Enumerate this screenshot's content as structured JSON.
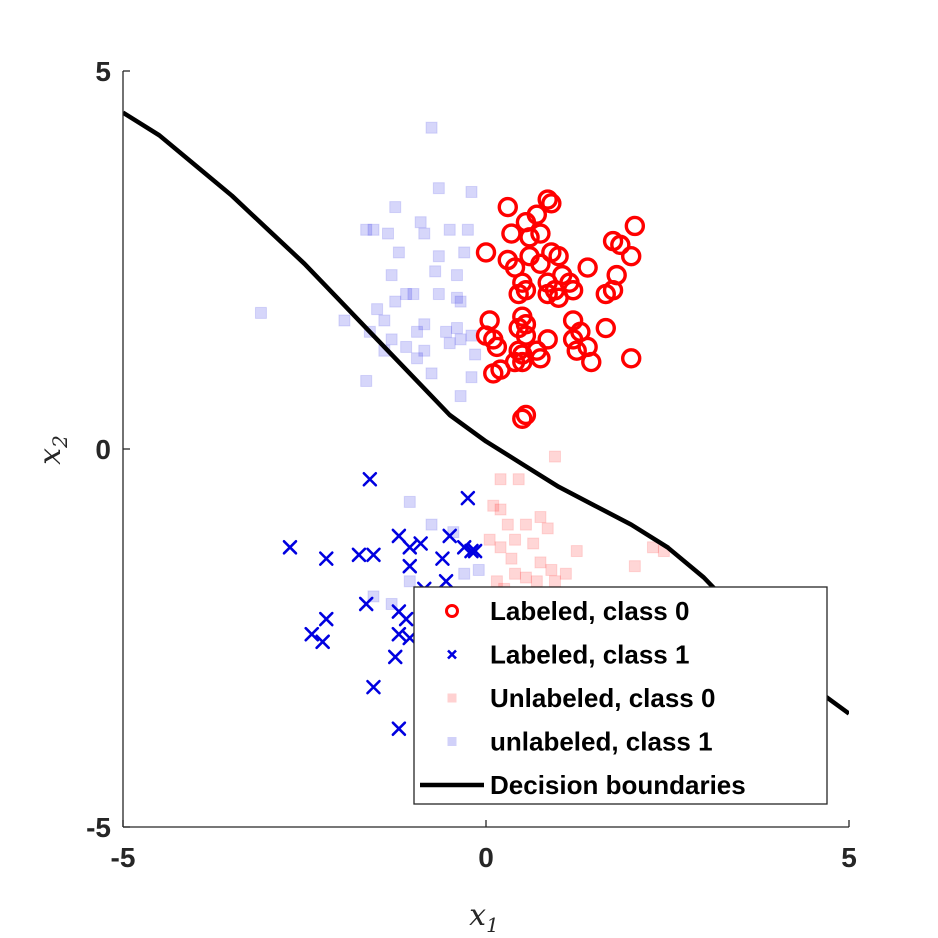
{
  "chart_data": {
    "type": "scatter",
    "title": "",
    "xlabel": "x",
    "xlabel_sub": "1",
    "ylabel": "x",
    "ylabel_sub": "2",
    "xlim": [
      -5,
      5
    ],
    "ylim": [
      -5,
      5
    ],
    "xticks": [
      -5,
      0,
      5
    ],
    "yticks": [
      -5,
      0,
      5
    ],
    "xtick_labels": [
      "-5",
      "0",
      "5"
    ],
    "ytick_labels": [
      "-5",
      "0",
      "5"
    ],
    "grid": false,
    "legend_position": "bottom-right",
    "colors": {
      "class0": "#ff0000",
      "class1": "#0000e0",
      "boundary": "#000000"
    },
    "series": [
      {
        "name": "Labeled, class 0",
        "marker": "circle",
        "points": [
          [
            0.3,
            3.2
          ],
          [
            0.55,
            3.0
          ],
          [
            0.85,
            3.3
          ],
          [
            0.9,
            3.25
          ],
          [
            0.7,
            3.1
          ],
          [
            2.05,
            2.95
          ],
          [
            0.35,
            2.85
          ],
          [
            0.6,
            2.8
          ],
          [
            0.75,
            2.85
          ],
          [
            1.75,
            2.75
          ],
          [
            1.85,
            2.7
          ],
          [
            0.0,
            2.6
          ],
          [
            0.3,
            2.5
          ],
          [
            0.6,
            2.55
          ],
          [
            0.9,
            2.6
          ],
          [
            1.0,
            2.55
          ],
          [
            2.0,
            2.55
          ],
          [
            0.4,
            2.4
          ],
          [
            0.75,
            2.45
          ],
          [
            1.05,
            2.3
          ],
          [
            1.4,
            2.4
          ],
          [
            0.5,
            2.2
          ],
          [
            0.85,
            2.2
          ],
          [
            0.95,
            2.1
          ],
          [
            1.15,
            2.2
          ],
          [
            1.8,
            2.3
          ],
          [
            1.2,
            2.1
          ],
          [
            0.45,
            2.05
          ],
          [
            0.55,
            2.1
          ],
          [
            1.65,
            2.05
          ],
          [
            1.75,
            2.1
          ],
          [
            0.85,
            2.05
          ],
          [
            1.0,
            2.0
          ],
          [
            0.05,
            1.7
          ],
          [
            0.5,
            1.75
          ],
          [
            0.55,
            1.65
          ],
          [
            1.2,
            1.7
          ],
          [
            1.65,
            1.6
          ],
          [
            0.45,
            1.6
          ],
          [
            0.0,
            1.5
          ],
          [
            0.1,
            1.45
          ],
          [
            0.55,
            1.5
          ],
          [
            0.85,
            1.45
          ],
          [
            1.3,
            1.55
          ],
          [
            1.2,
            1.45
          ],
          [
            0.15,
            1.35
          ],
          [
            0.45,
            1.3
          ],
          [
            0.7,
            1.3
          ],
          [
            1.25,
            1.3
          ],
          [
            1.4,
            1.35
          ],
          [
            0.4,
            1.15
          ],
          [
            0.5,
            1.25
          ],
          [
            0.75,
            1.2
          ],
          [
            1.45,
            1.15
          ],
          [
            2.0,
            1.2
          ],
          [
            0.1,
            1.0
          ],
          [
            0.5,
            1.15
          ],
          [
            0.5,
            0.4
          ],
          [
            0.55,
            0.45
          ],
          [
            0.2,
            1.05
          ]
        ]
      },
      {
        "name": "Labeled, class 1",
        "marker": "x",
        "points": [
          [
            -1.6,
            -0.4
          ],
          [
            -0.25,
            -0.65
          ],
          [
            -1.2,
            -1.15
          ],
          [
            -1.05,
            -1.3
          ],
          [
            -0.5,
            -1.15
          ],
          [
            -0.3,
            -1.3
          ],
          [
            -0.2,
            -1.35
          ],
          [
            -0.15,
            -1.35
          ],
          [
            -2.7,
            -1.3
          ],
          [
            -2.2,
            -1.45
          ],
          [
            -1.75,
            -1.4
          ],
          [
            -1.55,
            -1.4
          ],
          [
            -0.9,
            -1.25
          ],
          [
            -0.6,
            -1.45
          ],
          [
            -1.05,
            -1.55
          ],
          [
            -0.85,
            -1.85
          ],
          [
            -0.55,
            -1.75
          ],
          [
            -1.65,
            -2.05
          ],
          [
            -1.2,
            -2.15
          ],
          [
            -1.1,
            -2.25
          ],
          [
            -2.2,
            -2.25
          ],
          [
            -2.4,
            -2.45
          ],
          [
            -2.25,
            -2.55
          ],
          [
            -1.2,
            -2.45
          ],
          [
            -1.05,
            -2.5
          ],
          [
            -1.25,
            -2.75
          ],
          [
            -1.55,
            -3.15
          ],
          [
            -1.2,
            -3.7
          ]
        ]
      },
      {
        "name": "Unlabeled, class 0",
        "marker": "square",
        "points": [
          [
            0.2,
            -0.4
          ],
          [
            0.45,
            -0.4
          ],
          [
            0.95,
            -0.1
          ],
          [
            0.2,
            -0.8
          ],
          [
            0.1,
            -0.75
          ],
          [
            0.75,
            -0.9
          ],
          [
            0.55,
            -1.0
          ],
          [
            0.85,
            -1.05
          ],
          [
            0.3,
            -1.0
          ],
          [
            0.4,
            -1.2
          ],
          [
            0.65,
            -1.25
          ],
          [
            0.05,
            -1.2
          ],
          [
            0.2,
            -1.3
          ],
          [
            0.35,
            -1.45
          ],
          [
            0.75,
            -1.5
          ],
          [
            1.25,
            -1.35
          ],
          [
            2.45,
            -1.35
          ],
          [
            0.4,
            -1.65
          ],
          [
            0.55,
            -1.7
          ],
          [
            0.9,
            -1.6
          ],
          [
            1.1,
            -1.65
          ],
          [
            2.05,
            -1.55
          ],
          [
            0.25,
            -1.85
          ],
          [
            0.7,
            -1.75
          ],
          [
            0.95,
            -1.75
          ],
          [
            2.3,
            -1.3
          ],
          [
            0.15,
            -1.75
          ]
        ]
      },
      {
        "name": "unlabeled, class 1",
        "marker": "square",
        "points": [
          [
            -0.75,
            4.25
          ],
          [
            -0.65,
            3.45
          ],
          [
            -0.2,
            3.4
          ],
          [
            -1.25,
            3.2
          ],
          [
            -0.9,
            3.0
          ],
          [
            -1.65,
            2.9
          ],
          [
            -1.55,
            2.9
          ],
          [
            -1.35,
            2.85
          ],
          [
            -0.85,
            2.85
          ],
          [
            -0.5,
            2.9
          ],
          [
            -0.25,
            2.9
          ],
          [
            -1.2,
            2.6
          ],
          [
            -0.65,
            2.55
          ],
          [
            -0.3,
            2.6
          ],
          [
            -1.3,
            2.3
          ],
          [
            -0.7,
            2.35
          ],
          [
            -0.4,
            2.3
          ],
          [
            -1.0,
            2.05
          ],
          [
            -0.65,
            2.05
          ],
          [
            -0.4,
            2.0
          ],
          [
            -1.1,
            2.05
          ],
          [
            -1.25,
            1.95
          ],
          [
            -0.35,
            1.95
          ],
          [
            -1.5,
            1.85
          ],
          [
            -3.1,
            1.8
          ],
          [
            -1.4,
            1.7
          ],
          [
            -0.85,
            1.65
          ],
          [
            -0.55,
            1.55
          ],
          [
            -0.95,
            1.55
          ],
          [
            -0.4,
            1.6
          ],
          [
            -0.2,
            1.5
          ],
          [
            -1.95,
            1.7
          ],
          [
            -1.6,
            1.55
          ],
          [
            -1.3,
            1.45
          ],
          [
            -0.5,
            1.4
          ],
          [
            -0.35,
            1.45
          ],
          [
            -1.4,
            1.3
          ],
          [
            -0.85,
            1.3
          ],
          [
            -1.1,
            1.35
          ],
          [
            -0.15,
            1.25
          ],
          [
            -0.95,
            1.2
          ],
          [
            -1.65,
            0.9
          ],
          [
            -0.75,
            1.0
          ],
          [
            -0.2,
            0.95
          ],
          [
            -0.35,
            0.7
          ],
          [
            -1.05,
            -0.7
          ],
          [
            -0.75,
            -1.0
          ],
          [
            -0.45,
            -1.1
          ],
          [
            -0.1,
            -1.6
          ],
          [
            -0.3,
            -1.65
          ],
          [
            -1.05,
            -1.75
          ],
          [
            -0.9,
            -2.1
          ],
          [
            -0.7,
            -2.3
          ],
          [
            -1.3,
            -2.05
          ],
          [
            -1.55,
            -1.95
          ]
        ]
      },
      {
        "name": "Decision boundaries",
        "marker": "line",
        "points": [
          [
            -5,
            4.45
          ],
          [
            -4.5,
            4.15
          ],
          [
            -4,
            3.75
          ],
          [
            -3.5,
            3.35
          ],
          [
            -3,
            2.9
          ],
          [
            -2.5,
            2.45
          ],
          [
            -2,
            1.95
          ],
          [
            -1.5,
            1.45
          ],
          [
            -1,
            0.95
          ],
          [
            -0.5,
            0.45
          ],
          [
            0,
            0.1
          ],
          [
            0.5,
            -0.2
          ],
          [
            1,
            -0.5
          ],
          [
            1.5,
            -0.75
          ],
          [
            2,
            -1.0
          ],
          [
            2.5,
            -1.3
          ],
          [
            3,
            -1.7
          ],
          [
            3.5,
            -2.2
          ],
          [
            4,
            -2.7
          ],
          [
            4.5,
            -3.15
          ],
          [
            5,
            -3.5
          ]
        ]
      }
    ]
  }
}
